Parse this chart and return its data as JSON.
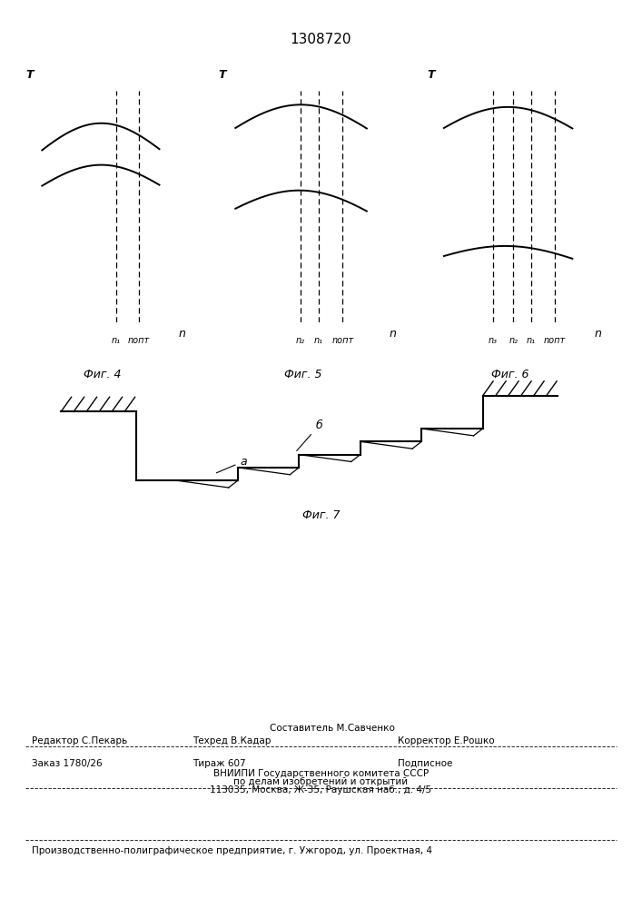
{
  "title": "1308720",
  "title_fontsize": 11,
  "fig4_label": "Фиг. 4",
  "fig5_label": "Фиг. 5",
  "fig6_label": "Фиг. 6",
  "fig7_label": "Фиг. 7",
  "axis_label_T": "T",
  "axis_label_n": "n",
  "fig4_xtick_labels": [
    "n₁",
    "nопт"
  ],
  "fig5_xtick_labels": [
    "n₂",
    "n₁",
    "nопт"
  ],
  "fig6_xtick_labels": [
    "n₃",
    "n₂",
    "n₁",
    "nопт"
  ],
  "footer_sestavitel": "Составитель М.Савченко",
  "footer_redaktor": "Редактор С.Пекарь",
  "footer_tehred": "Техред В.Кадар",
  "footer_korrektor": "Корректор Е.Рошко",
  "footer_zakaz": "Заказ 1780/26",
  "footer_tirazh": "Тираж 607",
  "footer_podpisnoe": "Подписное",
  "footer_vniip1": "ВНИИПИ Государственного комитета СССР",
  "footer_vniip2": "по делам изобретений и открытий",
  "footer_addr": "113035, Москва, Ж-35, Раушская наб., д. 4/5",
  "footer_predpr": "Производственно-полиграфическое предприятие, г. Ужгород, ул. Проектная, 4",
  "bg_color": "#ffffff"
}
